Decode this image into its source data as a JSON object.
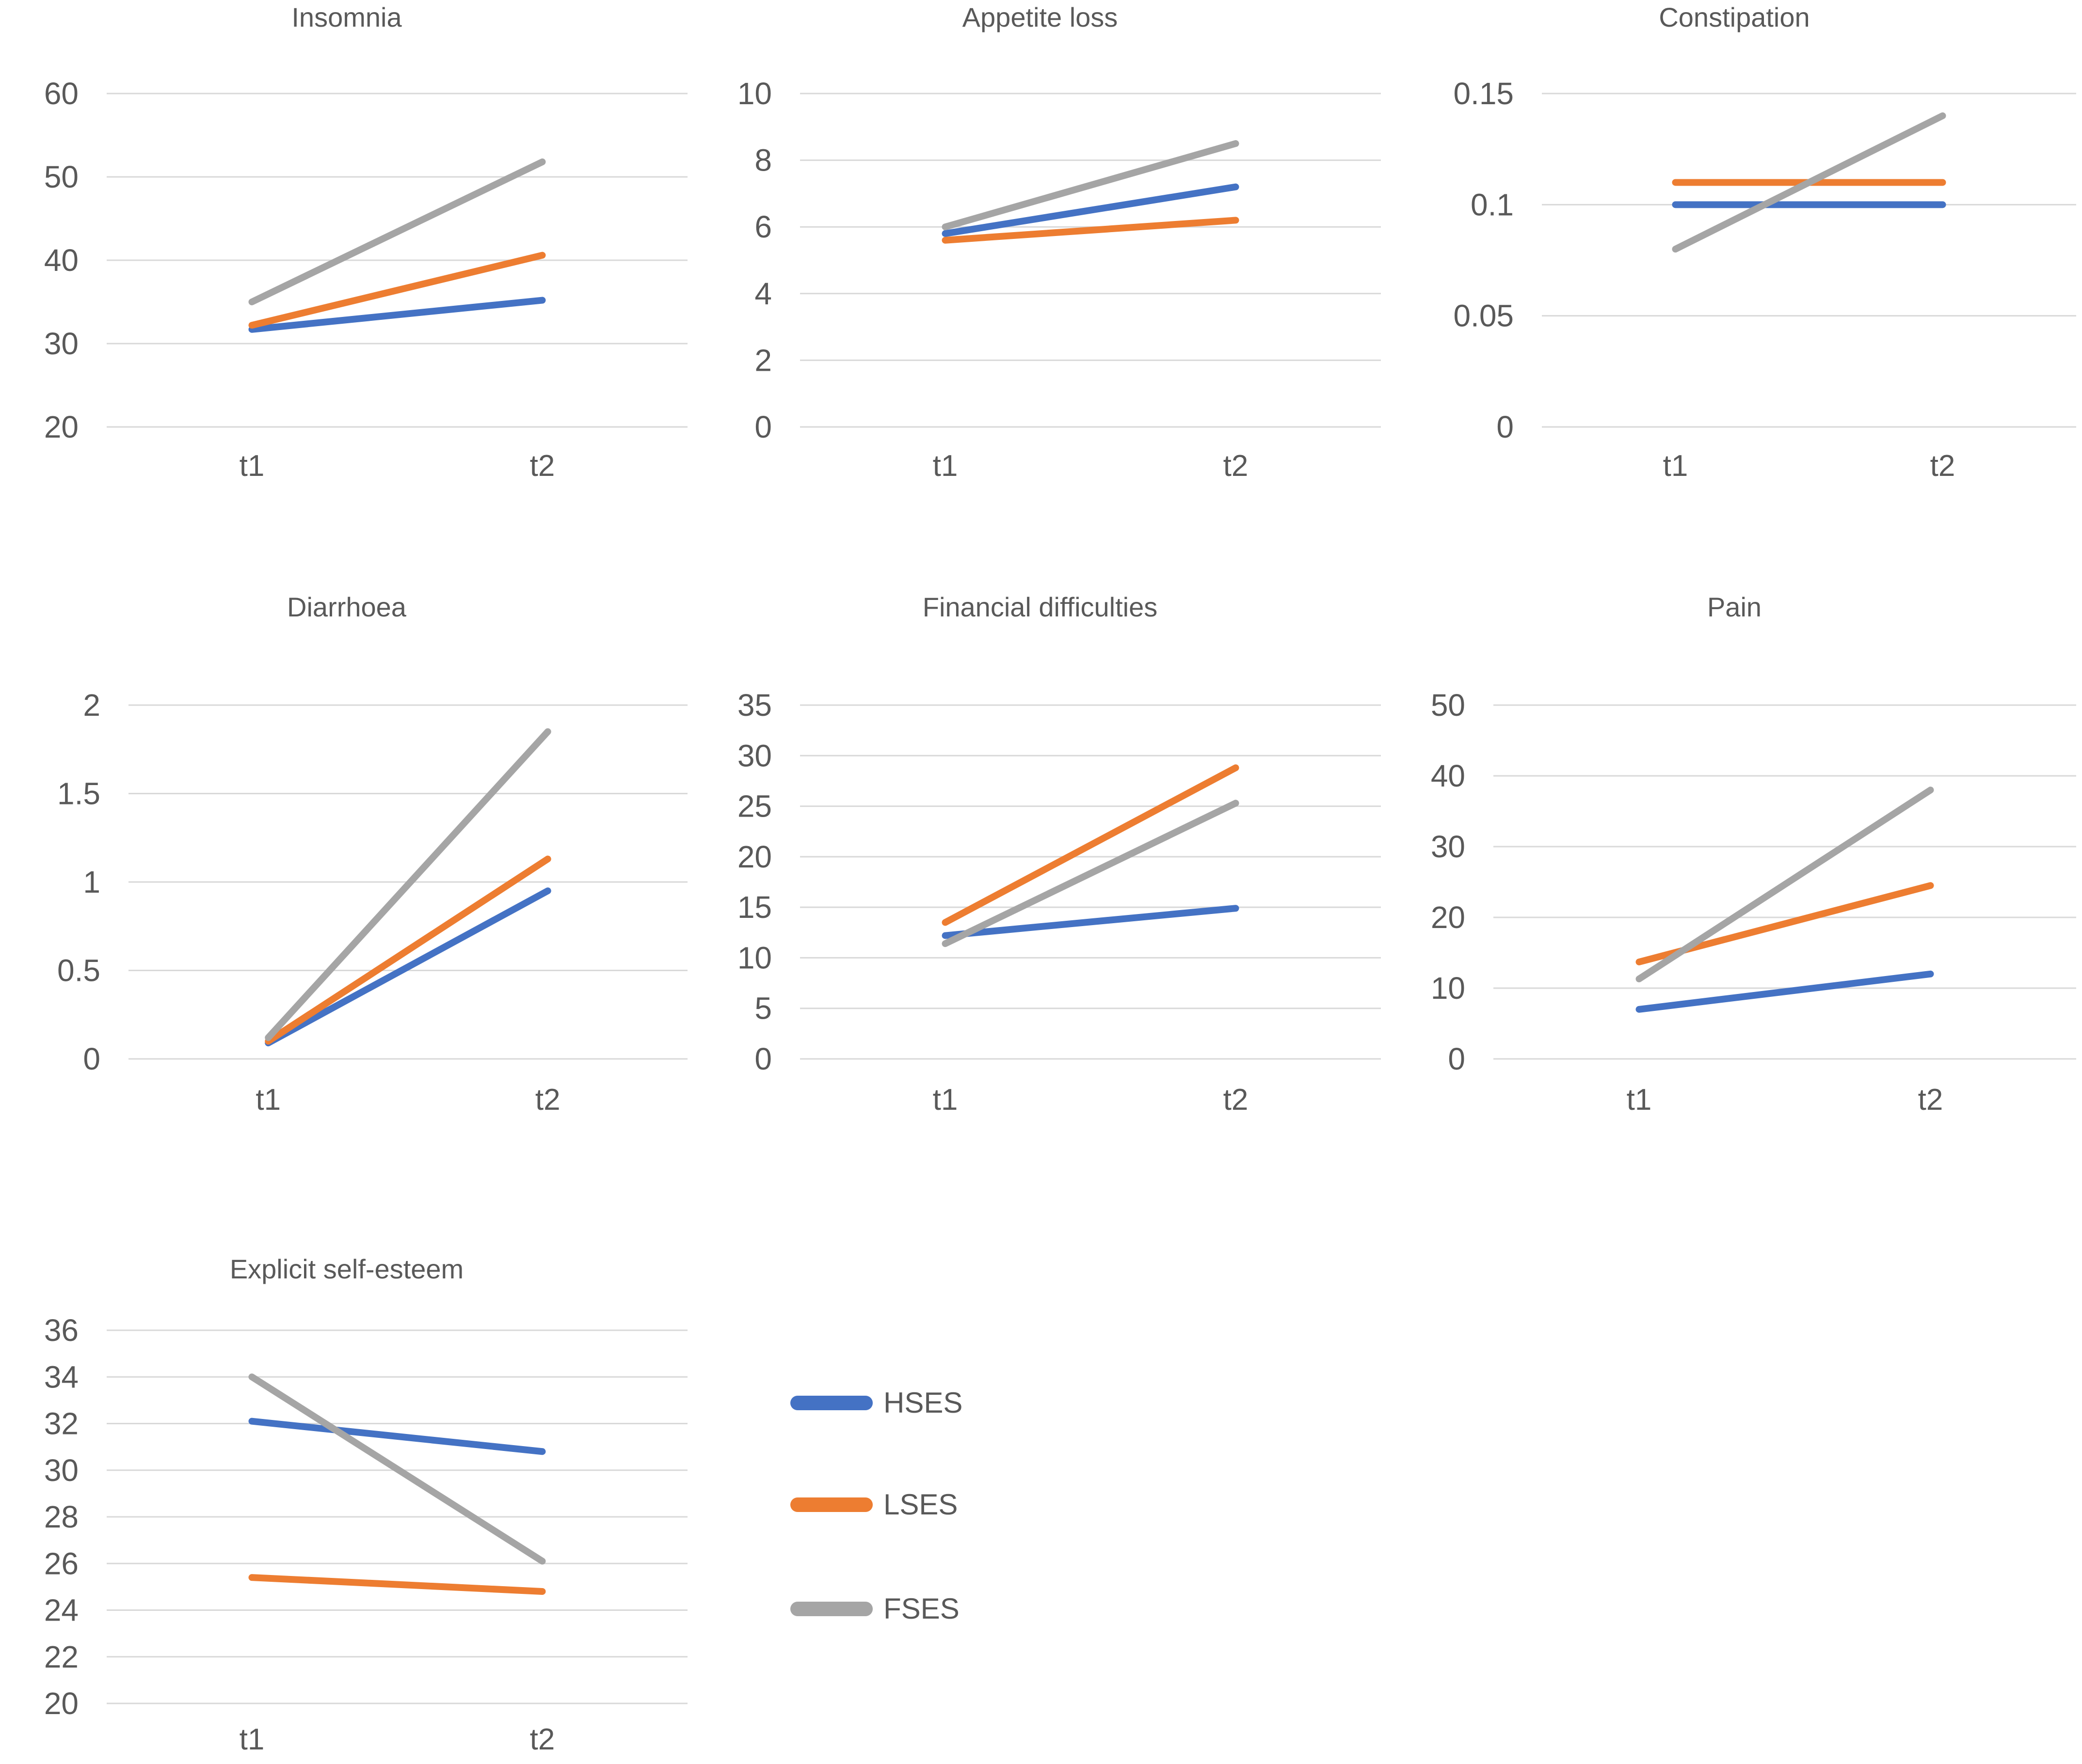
{
  "colors": {
    "HSES": "#4472C4",
    "LSES": "#ED7D31",
    "FSES": "#A5A5A5",
    "gridline": "#D9D9D9",
    "text": "#595959",
    "background": "#FFFFFF"
  },
  "legend": {
    "position": "bottom-middle-cell",
    "items": [
      {
        "label": "HSES"
      },
      {
        "label": "LSES"
      },
      {
        "label": "FSES"
      }
    ]
  },
  "chart_data": [
    {
      "type": "line",
      "title": "Insomnia",
      "categories": [
        "t1",
        "t2"
      ],
      "ylim": [
        20,
        60
      ],
      "ytick_labels": [
        "20",
        "30",
        "40",
        "50",
        "60"
      ],
      "grid": true,
      "series": [
        {
          "name": "HSES",
          "values": [
            31.7,
            35.2
          ]
        },
        {
          "name": "LSES",
          "values": [
            32.2,
            40.6
          ]
        },
        {
          "name": "FSES",
          "values": [
            35.0,
            51.8
          ]
        }
      ]
    },
    {
      "type": "line",
      "title": "Appetite loss",
      "categories": [
        "t1",
        "t2"
      ],
      "ylim": [
        0,
        10
      ],
      "ytick_labels": [
        "0",
        "2",
        "4",
        "6",
        "8",
        "10"
      ],
      "grid": true,
      "series": [
        {
          "name": "HSES",
          "values": [
            5.8,
            7.2
          ]
        },
        {
          "name": "LSES",
          "values": [
            5.6,
            6.2
          ]
        },
        {
          "name": "FSES",
          "values": [
            6.0,
            8.5
          ]
        }
      ]
    },
    {
      "type": "line",
      "title": "Constipation",
      "categories": [
        "t1",
        "t2"
      ],
      "ylim": [
        0,
        0.15
      ],
      "ytick_labels": [
        "0",
        "0.05",
        "0.1",
        "0.15"
      ],
      "grid": true,
      "series": [
        {
          "name": "HSES",
          "values": [
            0.1,
            0.1
          ]
        },
        {
          "name": "LSES",
          "values": [
            0.11,
            0.11
          ]
        },
        {
          "name": "FSES",
          "values": [
            0.08,
            0.14
          ]
        }
      ]
    },
    {
      "type": "line",
      "title": "Diarrhoea",
      "categories": [
        "t1",
        "t2"
      ],
      "ylim": [
        0,
        2
      ],
      "ytick_labels": [
        "0",
        "0.5",
        "1",
        "1.5",
        "2"
      ],
      "grid": true,
      "series": [
        {
          "name": "HSES",
          "values": [
            0.09,
            0.95
          ]
        },
        {
          "name": "LSES",
          "values": [
            0.1,
            1.13
          ]
        },
        {
          "name": "FSES",
          "values": [
            0.12,
            1.85
          ]
        }
      ]
    },
    {
      "type": "line",
      "title": "Financial difficulties",
      "categories": [
        "t1",
        "t2"
      ],
      "ylim": [
        0,
        35
      ],
      "ytick_labels": [
        "0",
        "5",
        "10",
        "15",
        "20",
        "25",
        "30",
        "35"
      ],
      "grid": true,
      "series": [
        {
          "name": "HSES",
          "values": [
            12.2,
            14.9
          ]
        },
        {
          "name": "LSES",
          "values": [
            13.5,
            28.8
          ]
        },
        {
          "name": "FSES",
          "values": [
            11.4,
            25.3
          ]
        }
      ]
    },
    {
      "type": "line",
      "title": "Pain",
      "categories": [
        "t1",
        "t2"
      ],
      "ylim": [
        0,
        50
      ],
      "ytick_labels": [
        "0",
        "10",
        "20",
        "30",
        "40",
        "50"
      ],
      "grid": true,
      "series": [
        {
          "name": "HSES",
          "values": [
            7.0,
            12.0
          ]
        },
        {
          "name": "LSES",
          "values": [
            13.7,
            24.5
          ]
        },
        {
          "name": "FSES",
          "values": [
            11.3,
            38.0
          ]
        }
      ]
    },
    {
      "type": "line",
      "title": "Explicit self-esteem",
      "categories": [
        "t1",
        "t2"
      ],
      "ylim": [
        20,
        36
      ],
      "ytick_labels": [
        "20",
        "22",
        "24",
        "26",
        "28",
        "30",
        "32",
        "34",
        "36"
      ],
      "grid": true,
      "series": [
        {
          "name": "HSES",
          "values": [
            32.1,
            30.8
          ]
        },
        {
          "name": "LSES",
          "values": [
            25.4,
            24.8
          ]
        },
        {
          "name": "FSES",
          "values": [
            34.0,
            26.1
          ]
        }
      ]
    }
  ]
}
